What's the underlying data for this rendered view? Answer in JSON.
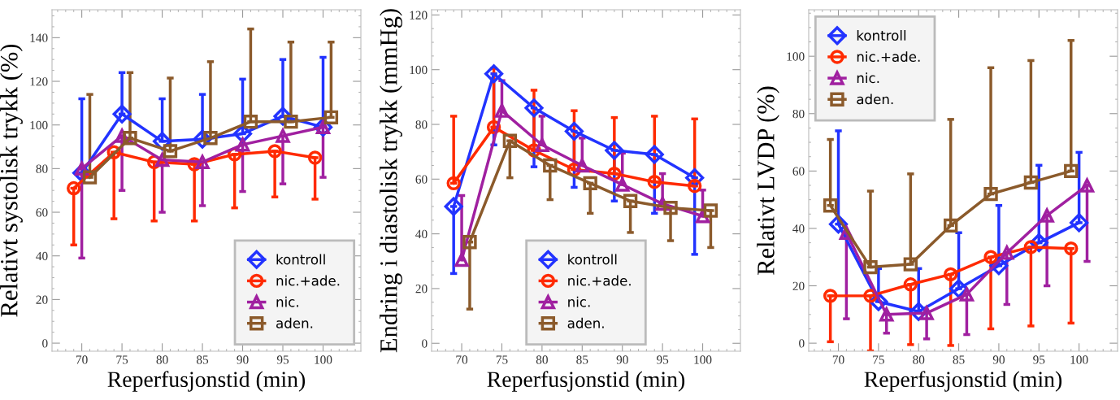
{
  "chart_data": [
    {
      "type": "line",
      "xlabel": "Reperfusjonstid (min)",
      "ylabel": "Relativt systolisk trykk (%)",
      "xlim": [
        66.3,
        104.7
      ],
      "ylim": [
        -3.7,
        152.8
      ],
      "xticks": [
        70,
        75,
        80,
        85,
        90,
        95,
        100
      ],
      "yticks": [
        0,
        20,
        40,
        60,
        80,
        100,
        120,
        140
      ],
      "grid": false,
      "legend": "bottom right",
      "series": [
        {
          "name": "kontroll",
          "color": "#2233ff",
          "marker": "diamond",
          "x": [
            70,
            75,
            80,
            85,
            90,
            95,
            100
          ],
          "values": [
            78,
            105,
            92.5,
            93.5,
            96,
            104,
            99
          ],
          "errors": [
            [
              78,
              112
            ],
            [
              105,
              124
            ],
            [
              92.5,
              112
            ],
            [
              93.5,
              114
            ],
            [
              96,
              121
            ],
            [
              104,
              130
            ],
            [
              99,
              131
            ]
          ]
        },
        {
          "name": "nic.+ade.",
          "color": "#ff2a00",
          "marker": "circle",
          "x": [
            69,
            74,
            79,
            84,
            89,
            94,
            99
          ],
          "values": [
            71,
            87.5,
            83,
            82,
            86.5,
            88,
            85
          ],
          "errors": [
            [
              45,
              71
            ],
            [
              57,
              87.5
            ],
            [
              56,
              83
            ],
            [
              56,
              82
            ],
            [
              62,
              86.5
            ],
            [
              67,
              88
            ],
            [
              66,
              85
            ]
          ]
        },
        {
          "name": "nic.",
          "color": "#a020a0",
          "marker": "triangle",
          "x": [
            70,
            75,
            80,
            85,
            90,
            95,
            100
          ],
          "values": [
            80,
            95,
            84,
            83,
            91,
            95,
            99
          ],
          "errors": [
            [
              39,
              80
            ],
            [
              70,
              95
            ],
            [
              60,
              84
            ],
            [
              63,
              83
            ],
            [
              69.5,
              91
            ],
            [
              73,
              95
            ],
            [
              76,
              99
            ]
          ]
        },
        {
          "name": "aden.",
          "color": "#8b5a2b",
          "marker": "square",
          "x": [
            71,
            76,
            81,
            86,
            91,
            96,
            101
          ],
          "values": [
            76,
            94,
            88,
            94,
            101.5,
            101.5,
            103.5
          ],
          "errors": [
            [
              76,
              114
            ],
            [
              94,
              124
            ],
            [
              88,
              121.5
            ],
            [
              94,
              129
            ],
            [
              101.5,
              144
            ],
            [
              101.5,
              138
            ],
            [
              103.5,
              138
            ]
          ]
        }
      ]
    },
    {
      "type": "line",
      "xlabel": "Reperfusjonstid (min)",
      "ylabel": "Endring i diastolisk trykk (mmHg)",
      "xlim": [
        66.25,
        104.7
      ],
      "ylim": [
        -2.9,
        121.9
      ],
      "xticks": [
        70,
        75,
        80,
        85,
        90,
        95,
        100
      ],
      "yticks": [
        0,
        20,
        40,
        60,
        80,
        100,
        120
      ],
      "grid": false,
      "legend": "bottom",
      "series": [
        {
          "name": "kontroll",
          "color": "#2233ff",
          "marker": "diamond",
          "x": [
            69,
            74,
            79,
            84,
            89,
            94,
            99
          ],
          "values": [
            50,
            98.5,
            86,
            77.5,
            70.5,
            69,
            60.5
          ],
          "errors": [
            [
              25.5,
              50
            ],
            [
              72.5,
              98.5
            ],
            [
              64.5,
              86
            ],
            [
              57,
              77.5
            ],
            [
              52,
              70.5
            ],
            [
              47.5,
              69
            ],
            [
              32.5,
              60.5
            ]
          ]
        },
        {
          "name": "nic.+ade.",
          "color": "#ff2a00",
          "marker": "circle",
          "x": [
            69,
            74,
            79,
            84,
            89,
            94,
            99
          ],
          "values": [
            58.5,
            79,
            70.5,
            63.5,
            62,
            59,
            57.5
          ],
          "errors": [
            [
              58.5,
              83
            ],
            [
              79,
              100.5
            ],
            [
              70.5,
              92.5
            ],
            [
              63.5,
              85
            ],
            [
              62,
              82.5
            ],
            [
              59,
              83
            ],
            [
              57.5,
              82
            ]
          ]
        },
        {
          "name": "nic.",
          "color": "#a020a0",
          "marker": "triangle",
          "x": [
            70,
            75,
            80,
            85,
            90,
            95,
            100
          ],
          "values": [
            30.5,
            85,
            72.5,
            65,
            58,
            51,
            46.5
          ],
          "errors": [
            [
              30.5,
              54
            ],
            [
              85,
              96
            ],
            [
              72.5,
              83
            ],
            [
              65,
              75
            ],
            [
              58,
              69.5
            ],
            [
              51,
              62
            ],
            [
              46.5,
              56
            ]
          ]
        },
        {
          "name": "aden.",
          "color": "#8b5a2b",
          "marker": "square",
          "x": [
            71,
            76,
            81,
            86,
            91,
            96,
            101
          ],
          "values": [
            37,
            74,
            65,
            58.5,
            52,
            49.5,
            48.5
          ],
          "errors": [
            [
              12.5,
              37
            ],
            [
              60.5,
              74
            ],
            [
              52.5,
              65
            ],
            [
              47.5,
              58.5
            ],
            [
              40.5,
              52
            ],
            [
              37.5,
              49.5
            ],
            [
              35,
              48.5
            ]
          ]
        }
      ]
    },
    {
      "type": "line",
      "xlabel": "Reperfusjonstid (min)",
      "ylabel": "Relativt LVDP (%)",
      "xlim": [
        66.3,
        104.8
      ],
      "ylim": [
        -2.8,
        116.2
      ],
      "xticks": [
        70,
        75,
        80,
        85,
        90,
        95,
        100
      ],
      "yticks": [
        0,
        20,
        40,
        60,
        80,
        100
      ],
      "grid": false,
      "legend": "top left",
      "series": [
        {
          "name": "kontroll",
          "color": "#2233ff",
          "marker": "diamond",
          "x": [
            70,
            75,
            80,
            85,
            90,
            95,
            100
          ],
          "values": [
            41.5,
            14.5,
            11,
            19,
            27,
            35,
            42
          ],
          "errors": [
            [
              41.5,
              74
            ],
            [
              14.5,
              26
            ],
            [
              11,
              26
            ],
            [
              19,
              38.5
            ],
            [
              27,
              48
            ],
            [
              35,
              62
            ],
            [
              42,
              66.5
            ]
          ]
        },
        {
          "name": "nic.+ade.",
          "color": "#ff2a00",
          "marker": "circle",
          "x": [
            69,
            74,
            79,
            84,
            89,
            94,
            99
          ],
          "values": [
            16.5,
            16.5,
            20.5,
            24,
            30,
            33.5,
            33
          ],
          "errors": [
            [
              0.5,
              16.5
            ],
            [
              -2.7,
              16.5
            ],
            [
              -0.5,
              20.5
            ],
            [
              -0.8,
              24
            ],
            [
              5,
              30
            ],
            [
              6,
              33.5
            ],
            [
              7,
              33
            ]
          ]
        },
        {
          "name": "nic.",
          "color": "#a020a0",
          "marker": "triangle",
          "x": [
            71,
            76,
            81,
            86,
            91,
            96,
            101
          ],
          "values": [
            38.5,
            10,
            10.5,
            17,
            31.5,
            44.5,
            55
          ],
          "errors": [
            [
              8.5,
              38.5
            ],
            [
              3.5,
              10
            ],
            [
              1.5,
              10.5
            ],
            [
              3,
              17
            ],
            [
              13.5,
              31.5
            ],
            [
              20,
              44.5
            ],
            [
              28.5,
              55
            ]
          ]
        },
        {
          "name": "aden.",
          "color": "#8b5a2b",
          "marker": "square",
          "x": [
            69,
            74,
            79,
            84,
            89,
            94,
            99
          ],
          "values": [
            48,
            26.5,
            27.5,
            41,
            52,
            56,
            60
          ],
          "errors": [
            [
              48,
              71
            ],
            [
              26.5,
              53
            ],
            [
              27.5,
              59
            ],
            [
              41,
              78
            ],
            [
              52,
              96
            ],
            [
              56,
              98.5
            ],
            [
              60,
              105.5
            ]
          ]
        }
      ]
    }
  ]
}
